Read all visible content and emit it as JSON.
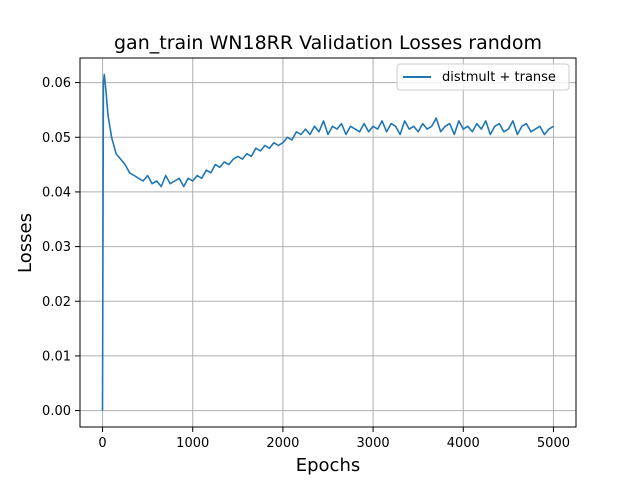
{
  "chart_data": {
    "type": "line",
    "title": "gan_train WN18RR Validation Losses random",
    "xlabel": "Epochs",
    "ylabel": "Losses",
    "xlim": [
      -250,
      5250
    ],
    "ylim": [
      -0.003,
      0.0645
    ],
    "xticks": [
      0,
      1000,
      2000,
      3000,
      4000,
      5000
    ],
    "xtick_labels": [
      "0",
      "1000",
      "2000",
      "3000",
      "4000",
      "5000"
    ],
    "yticks": [
      0.0,
      0.01,
      0.02,
      0.03,
      0.04,
      0.05,
      0.06
    ],
    "ytick_labels": [
      "0.00",
      "0.01",
      "0.02",
      "0.03",
      "0.04",
      "0.05",
      "0.06"
    ],
    "grid": true,
    "legend_position": "upper right",
    "colors": {
      "series": "#1f77b4"
    },
    "series": [
      {
        "name": "distmult + transe",
        "x": [
          0,
          10,
          20,
          40,
          60,
          80,
          100,
          150,
          200,
          250,
          300,
          350,
          400,
          450,
          500,
          550,
          600,
          650,
          700,
          750,
          800,
          850,
          900,
          950,
          1000,
          1050,
          1100,
          1150,
          1200,
          1250,
          1300,
          1350,
          1400,
          1450,
          1500,
          1550,
          1600,
          1650,
          1700,
          1750,
          1800,
          1850,
          1900,
          1950,
          2000,
          2050,
          2100,
          2150,
          2200,
          2250,
          2300,
          2350,
          2400,
          2450,
          2500,
          2550,
          2600,
          2650,
          2700,
          2750,
          2800,
          2850,
          2900,
          2950,
          3000,
          3050,
          3100,
          3150,
          3200,
          3250,
          3300,
          3350,
          3400,
          3450,
          3500,
          3550,
          3600,
          3650,
          3700,
          3750,
          3800,
          3850,
          3900,
          3950,
          4000,
          4050,
          4100,
          4150,
          4200,
          4250,
          4300,
          4350,
          4400,
          4450,
          4500,
          4550,
          4600,
          4650,
          4700,
          4750,
          4800,
          4850,
          4900,
          4950,
          5000
        ],
        "values": [
          0.0,
          0.06,
          0.0615,
          0.058,
          0.054,
          0.052,
          0.05,
          0.047,
          0.046,
          0.045,
          0.0435,
          0.043,
          0.0425,
          0.042,
          0.043,
          0.0415,
          0.042,
          0.041,
          0.043,
          0.0415,
          0.042,
          0.0425,
          0.041,
          0.0425,
          0.042,
          0.043,
          0.0425,
          0.044,
          0.0435,
          0.045,
          0.0445,
          0.0455,
          0.045,
          0.046,
          0.0465,
          0.046,
          0.047,
          0.0465,
          0.048,
          0.0475,
          0.0485,
          0.048,
          0.049,
          0.0485,
          0.049,
          0.05,
          0.0495,
          0.051,
          0.0505,
          0.0515,
          0.0505,
          0.052,
          0.051,
          0.053,
          0.0505,
          0.052,
          0.0515,
          0.0525,
          0.0505,
          0.052,
          0.0515,
          0.051,
          0.0525,
          0.051,
          0.052,
          0.0515,
          0.053,
          0.051,
          0.0525,
          0.052,
          0.0505,
          0.053,
          0.0515,
          0.052,
          0.051,
          0.0525,
          0.0515,
          0.052,
          0.0535,
          0.051,
          0.052,
          0.0525,
          0.0505,
          0.053,
          0.0515,
          0.052,
          0.051,
          0.0525,
          0.0515,
          0.053,
          0.0505,
          0.052,
          0.0525,
          0.051,
          0.0515,
          0.053,
          0.0505,
          0.052,
          0.0525,
          0.051,
          0.0515,
          0.052,
          0.0505,
          0.0515,
          0.052
        ]
      }
    ]
  }
}
